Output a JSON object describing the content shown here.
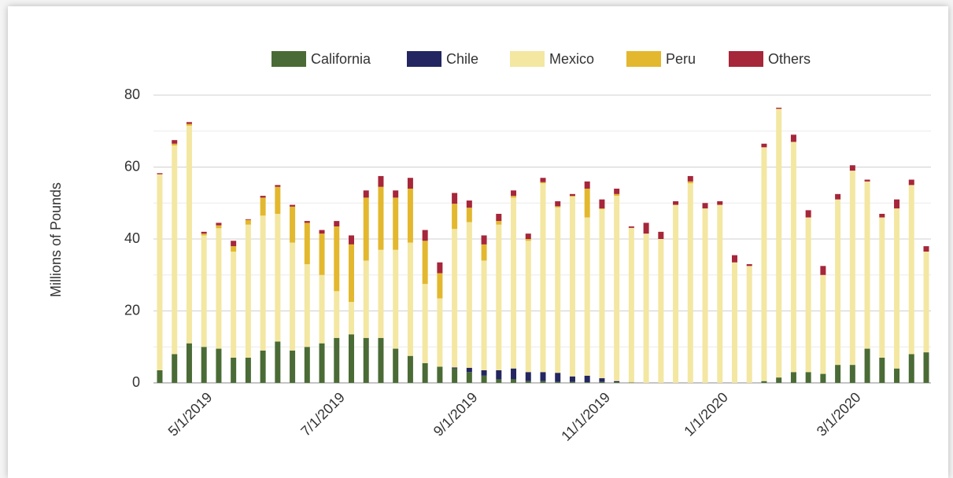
{
  "chart_data": {
    "type": "stacked_bar",
    "y_label": "Millions of Pounds",
    "categories": [
      null,
      null,
      null,
      "5/1/2019",
      null,
      null,
      null,
      null,
      null,
      null,
      null,
      null,
      "7/1/2019",
      null,
      null,
      null,
      null,
      null,
      null,
      null,
      null,
      "9/1/2019",
      null,
      null,
      null,
      null,
      null,
      null,
      null,
      null,
      "11/1/2019",
      null,
      null,
      null,
      null,
      null,
      null,
      null,
      "1/1/2020",
      null,
      null,
      null,
      null,
      null,
      null,
      null,
      null,
      "3/1/2020",
      null,
      null,
      null,
      null,
      null
    ],
    "series": [
      {
        "name": "California",
        "color": "#4a6b35",
        "values": [
          3.5,
          8,
          11,
          10,
          9.5,
          7,
          7,
          9,
          11.5,
          9,
          10,
          11,
          12.5,
          13.5,
          12.5,
          12.5,
          9.5,
          7.5,
          5.5,
          4.5,
          4,
          3,
          2,
          1,
          1,
          0.5,
          0.5,
          0.3,
          0.3,
          0.2,
          0.3,
          0.2,
          0.1,
          0,
          0,
          0,
          0,
          0,
          0,
          0,
          0,
          0.5,
          1.5,
          3,
          3,
          2.5,
          5,
          5,
          9.5,
          7,
          4,
          8,
          8.5
        ]
      },
      {
        "name": "Chile",
        "color": "#232660",
        "values": [
          0,
          0,
          0,
          0,
          0,
          0,
          0,
          0,
          0,
          0,
          0,
          0,
          0,
          0,
          0,
          0,
          0,
          0,
          0,
          0,
          0.3,
          1.2,
          1.5,
          2.5,
          3,
          2.5,
          2.5,
          2.5,
          1.5,
          1.8,
          1,
          0.3,
          0,
          0,
          0,
          0,
          0,
          0,
          0,
          0,
          0,
          0,
          0,
          0,
          0,
          0,
          0,
          0,
          0,
          0,
          0,
          0,
          0
        ]
      },
      {
        "name": "Mexico",
        "color": "#f3e7a2",
        "values": [
          54.5,
          58,
          60.5,
          31,
          33.5,
          29.5,
          37,
          37.5,
          35.5,
          30,
          23,
          19,
          13,
          9,
          21.5,
          24.5,
          27.5,
          31.5,
          22,
          19,
          38.5,
          40.5,
          30.5,
          40.5,
          47.5,
          36.5,
          52.5,
          46,
          50,
          44,
          47,
          51.5,
          43,
          41.5,
          40,
          49.5,
          55.5,
          48.5,
          49.5,
          33.5,
          32.5,
          65,
          74.7,
          64,
          43,
          27.5,
          46,
          54,
          46.5,
          39,
          44.5,
          47,
          28
        ]
      },
      {
        "name": "Peru",
        "color": "#e3b82e",
        "values": [
          0,
          0.5,
          0.5,
          0.5,
          0.8,
          1.5,
          1.3,
          5,
          7.5,
          10,
          11.5,
          11.5,
          18,
          16,
          17.5,
          17.5,
          14.5,
          15,
          12,
          7,
          7,
          4,
          4.5,
          1,
          0.5,
          0.5,
          0.3,
          0.3,
          0.2,
          8,
          0.2,
          0.5,
          0,
          0,
          0,
          0,
          0.5,
          0,
          0,
          0,
          0,
          0,
          0,
          0,
          0,
          0,
          0,
          0,
          0,
          0,
          0,
          0,
          0
        ]
      },
      {
        "name": "Others",
        "color": "#a6263a",
        "values": [
          0.3,
          1,
          0.5,
          0.5,
          0.7,
          1.5,
          0.2,
          0.5,
          0.5,
          0.5,
          0.5,
          1,
          1.5,
          2.5,
          2,
          3,
          2,
          3,
          3,
          3,
          3,
          2,
          2.5,
          2,
          1.5,
          1.5,
          1.2,
          1.4,
          0.5,
          2,
          2.5,
          1.5,
          0.4,
          3,
          2,
          1,
          1.5,
          1.5,
          1,
          2,
          0.5,
          1,
          0.3,
          2,
          2,
          2.5,
          1.5,
          1.5,
          0.5,
          1,
          2.5,
          1.5,
          1.5
        ]
      }
    ],
    "ylim": [
      0,
      80
    ],
    "yticks": [
      0,
      20,
      40,
      60,
      80
    ],
    "minor_yticks": [
      10,
      30,
      50,
      70
    ],
    "grid": true,
    "legend": "top"
  }
}
